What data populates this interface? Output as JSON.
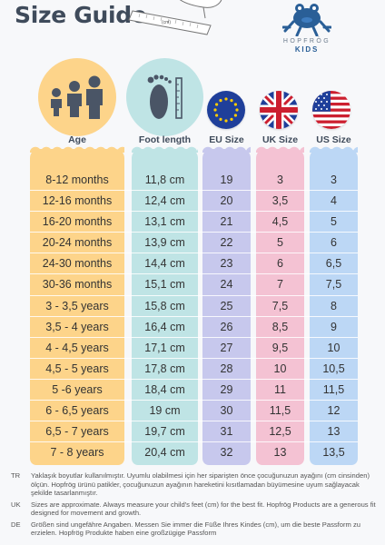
{
  "title": "Size Guide",
  "brand": {
    "name": "HOPFRÖG",
    "sub": "KIDS"
  },
  "ruler_label": "(cm)",
  "headers": {
    "age": "Age",
    "foot": "Foot length",
    "eu": "EU Size",
    "uk": "UK Size",
    "us": "US Size"
  },
  "rows": [
    {
      "age": "8-12 months",
      "foot": "11,8 cm",
      "eu": "19",
      "uk": "3",
      "us": "3"
    },
    {
      "age": "12-16 months",
      "foot": "12,4 cm",
      "eu": "20",
      "uk": "3,5",
      "us": "4"
    },
    {
      "age": "16-20 months",
      "foot": "13,1 cm",
      "eu": "21",
      "uk": "4,5",
      "us": "5"
    },
    {
      "age": "20-24 months",
      "foot": "13,9 cm",
      "eu": "22",
      "uk": "5",
      "us": "6"
    },
    {
      "age": "24-30 months",
      "foot": "14,4 cm",
      "eu": "23",
      "uk": "6",
      "us": "6,5"
    },
    {
      "age": "30-36 months",
      "foot": "15,1 cm",
      "eu": "24",
      "uk": "7",
      "us": "7,5"
    },
    {
      "age": "3 - 3,5 years",
      "foot": "15,8 cm",
      "eu": "25",
      "uk": "7,5",
      "us": "8"
    },
    {
      "age": "3,5 - 4 years",
      "foot": "16,4 cm",
      "eu": "26",
      "uk": "8,5",
      "us": "9"
    },
    {
      "age": "4 - 4,5 years",
      "foot": "17,1 cm",
      "eu": "27",
      "uk": "9,5",
      "us": "10"
    },
    {
      "age": "4,5 - 5 years",
      "foot": "17,8 cm",
      "eu": "28",
      "uk": "10",
      "us": "10,5"
    },
    {
      "age": "5 -6 years",
      "foot": "18,4 cm",
      "eu": "29",
      "uk": "11",
      "us": "11,5"
    },
    {
      "age": "6 - 6,5 years",
      "foot": "19 cm",
      "eu": "30",
      "uk": "11,5",
      "us": "12"
    },
    {
      "age": "6,5 - 7 years",
      "foot": "19,7 cm",
      "eu": "31",
      "uk": "12,5",
      "us": "13"
    },
    {
      "age": "7 - 8 years",
      "foot": "20,4 cm",
      "eu": "32",
      "uk": "13",
      "us": "13,5"
    }
  ],
  "notes": [
    {
      "code": "TR",
      "text": "Yaklaşık boyutlar kullanılmıştır. Uyumlu olabilmesi için her siparişten önce çocuğunuzun ayağını (cm cinsinden) ölçün. Hopfrög ürünü patikler, çocuğunuzun ayağının hareketini kısıtlamadan büyümesine uyum sağlayacak şekilde tasarlanmıştır."
    },
    {
      "code": "UK",
      "text": "Sizes are approximate. Always measure your child's feet (cm) for the best fit. Hopfrög Products are a generous fit designed for movement and growth."
    },
    {
      "code": "DE",
      "text": "Größen sind ungefähre Angaben. Messen Sie immer die Füße Ihres Kindes (cm), um die beste Passform zu erzielen. Hopfrög Produkte haben eine großzügige Passform"
    }
  ],
  "colors": {
    "age": "#fdd48a",
    "foot": "#bfe4e5",
    "eu": "#c7c8ed",
    "uk": "#f4c2d3",
    "us": "#bcd7f5",
    "title": "#3f4b5b",
    "brand": "#2a5f97"
  },
  "icons": [
    "family-icon",
    "foot-ruler-icon",
    "eu-flag-icon",
    "uk-flag-icon",
    "us-flag-icon",
    "frog-logo-icon",
    "foot-measure-illustration"
  ]
}
